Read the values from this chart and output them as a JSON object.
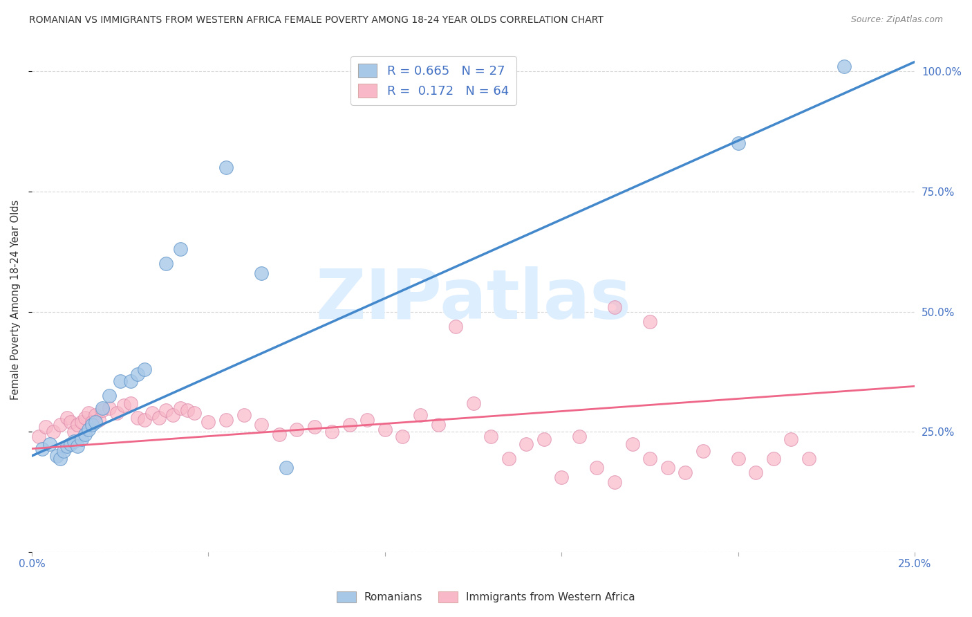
{
  "title": "ROMANIAN VS IMMIGRANTS FROM WESTERN AFRICA FEMALE POVERTY AMONG 18-24 YEAR OLDS CORRELATION CHART",
  "source": "Source: ZipAtlas.com",
  "ylabel": "Female Poverty Among 18-24 Year Olds",
  "xlim": [
    0.0,
    0.25
  ],
  "ylim": [
    0.0,
    1.05
  ],
  "xticks": [
    0.0,
    0.05,
    0.1,
    0.15,
    0.2,
    0.25
  ],
  "yticks": [
    0.0,
    0.25,
    0.5,
    0.75,
    1.0
  ],
  "xticklabels": [
    "0.0%",
    "",
    "",
    "",
    "",
    "25.0%"
  ],
  "yticklabels_right": [
    "",
    "25.0%",
    "50.0%",
    "75.0%",
    "100.0%"
  ],
  "blue_color": "#a8c8e8",
  "pink_color": "#f8b8c8",
  "blue_line_color": "#4488cc",
  "pink_line_color": "#ee6688",
  "watermark": "ZIPatlas",
  "watermark_color": "#ddeeff",
  "blue_regression": [
    0.0,
    0.2,
    0.25,
    1.02
  ],
  "pink_regression": [
    0.0,
    0.215,
    0.25,
    0.345
  ],
  "blue_x": [
    0.003,
    0.005,
    0.007,
    0.008,
    0.009,
    0.01,
    0.011,
    0.012,
    0.013,
    0.014,
    0.015,
    0.016,
    0.017,
    0.018,
    0.02,
    0.022,
    0.025,
    0.028,
    0.03,
    0.032,
    0.038,
    0.042,
    0.055,
    0.065,
    0.072,
    0.2,
    0.23
  ],
  "blue_y": [
    0.215,
    0.225,
    0.2,
    0.195,
    0.21,
    0.22,
    0.225,
    0.23,
    0.22,
    0.235,
    0.245,
    0.255,
    0.265,
    0.27,
    0.3,
    0.325,
    0.355,
    0.355,
    0.37,
    0.38,
    0.6,
    0.63,
    0.8,
    0.58,
    0.175,
    0.85,
    1.01
  ],
  "pink_x": [
    0.002,
    0.004,
    0.006,
    0.008,
    0.01,
    0.011,
    0.012,
    0.013,
    0.014,
    0.015,
    0.016,
    0.017,
    0.018,
    0.019,
    0.02,
    0.022,
    0.024,
    0.026,
    0.028,
    0.03,
    0.032,
    0.034,
    0.036,
    0.038,
    0.04,
    0.042,
    0.044,
    0.046,
    0.05,
    0.055,
    0.06,
    0.065,
    0.07,
    0.075,
    0.08,
    0.085,
    0.09,
    0.095,
    0.1,
    0.105,
    0.11,
    0.115,
    0.12,
    0.125,
    0.13,
    0.135,
    0.14,
    0.145,
    0.15,
    0.155,
    0.16,
    0.165,
    0.17,
    0.175,
    0.18,
    0.185,
    0.19,
    0.2,
    0.205,
    0.21,
    0.215,
    0.22,
    0.165,
    0.175
  ],
  "pink_y": [
    0.24,
    0.26,
    0.25,
    0.265,
    0.28,
    0.27,
    0.25,
    0.265,
    0.27,
    0.28,
    0.29,
    0.27,
    0.285,
    0.275,
    0.295,
    0.3,
    0.29,
    0.305,
    0.31,
    0.28,
    0.275,
    0.29,
    0.28,
    0.295,
    0.285,
    0.3,
    0.295,
    0.29,
    0.27,
    0.275,
    0.285,
    0.265,
    0.245,
    0.255,
    0.26,
    0.25,
    0.265,
    0.275,
    0.255,
    0.24,
    0.285,
    0.265,
    0.47,
    0.31,
    0.24,
    0.195,
    0.225,
    0.235,
    0.155,
    0.24,
    0.175,
    0.145,
    0.225,
    0.195,
    0.175,
    0.165,
    0.21,
    0.195,
    0.165,
    0.195,
    0.235,
    0.195,
    0.51,
    0.48
  ]
}
